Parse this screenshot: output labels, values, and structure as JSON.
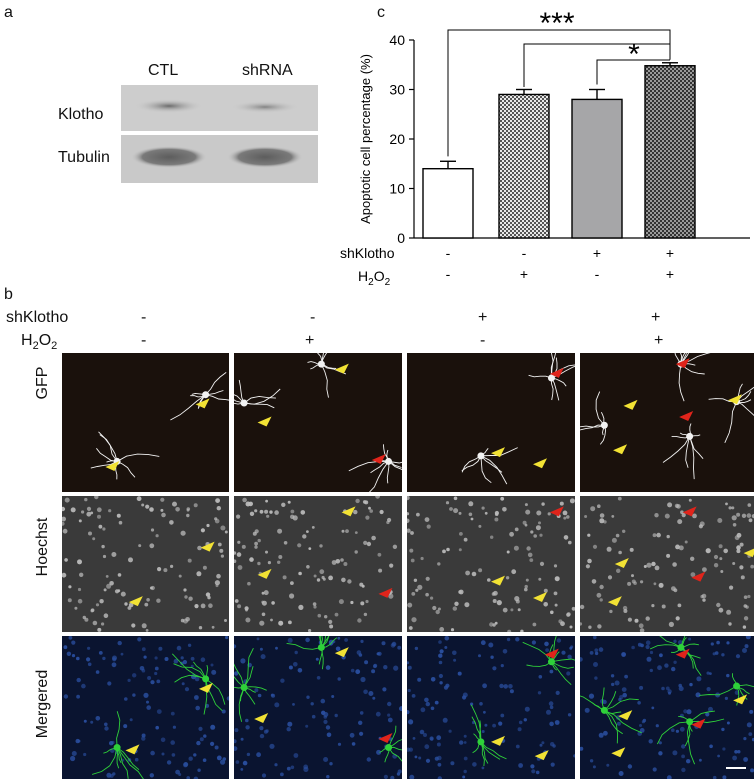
{
  "panels": {
    "a": "a",
    "b": "b",
    "c": "c"
  },
  "blot": {
    "lanes": [
      "CTL",
      "shRNA"
    ],
    "rows": [
      "Klotho",
      "Tubulin"
    ]
  },
  "chart_data": {
    "type": "bar",
    "ylabel": "Apoptotic cell percentage (%)",
    "ylim": [
      0,
      40
    ],
    "yticks": [
      "0",
      "10",
      "20",
      "30",
      "40"
    ],
    "categories": [
      "CTL",
      "H2O2",
      "shKlotho",
      "shKlotho+H2O2"
    ],
    "values": [
      14,
      29,
      28,
      34.8
    ],
    "errors": [
      1.5,
      1.0,
      2.0,
      0.6
    ],
    "fills": [
      "white",
      "checker",
      "gray",
      "checker-dark"
    ],
    "conditions": {
      "shKlotho": [
        "-",
        "-",
        "+",
        "+"
      ],
      "H2O2": [
        "-",
        "+",
        "-",
        "+"
      ]
    },
    "row_labels": {
      "shKlotho": "shKlotho",
      "H2O2_base": "H",
      "H2O2_sub1": "2",
      "H2O2_mid": "O",
      "H2O2_sub2": "2"
    },
    "significance": [
      "***",
      "*"
    ]
  },
  "micrographs": {
    "conditions": {
      "shKlotho": [
        "-",
        "-",
        "+",
        "+"
      ],
      "H2O2": [
        "-",
        "+",
        "-",
        "+"
      ]
    },
    "row_labels": [
      "GFP",
      "Hoechst",
      "Mergered"
    ],
    "shKlotho_label": "shKlotho",
    "h2o2_label": {
      "base": "H",
      "sub1": "2",
      "mid": "O",
      "sub2": "2"
    }
  },
  "colors": {
    "yellow_arrow": "#f2e234",
    "red_arrow": "#e0241b",
    "gfp_bg": "#1a110c",
    "hoechst_bg": "#3a3a3a",
    "merged_bg": "#0a1430",
    "neuron_green": "#2fd13a",
    "nuclei_blue": "#2a4fa0"
  }
}
